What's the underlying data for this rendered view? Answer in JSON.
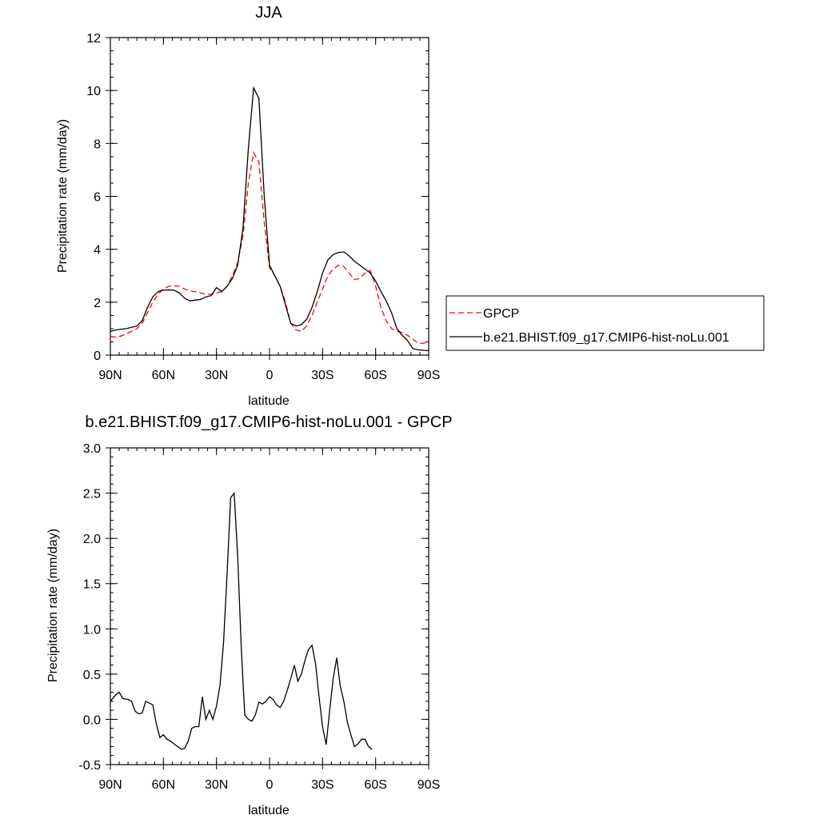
{
  "chart_data": [
    {
      "type": "line",
      "title": "JJA",
      "xlabel": "latitude",
      "ylabel": "Precipitation rate (mm/day)",
      "xlim": [
        90,
        -90
      ],
      "ylim": [
        0,
        12
      ],
      "x_ticks": [
        {
          "value": 90,
          "label": "90N"
        },
        {
          "value": 60,
          "label": "60N"
        },
        {
          "value": 30,
          "label": "30N"
        },
        {
          "value": 0,
          "label": "0"
        },
        {
          "value": -30,
          "label": "30S"
        },
        {
          "value": -60,
          "label": "60S"
        },
        {
          "value": -90,
          "label": "90S"
        }
      ],
      "y_ticks": [
        {
          "value": 0,
          "label": "0"
        },
        {
          "value": 2,
          "label": "2"
        },
        {
          "value": 4,
          "label": "4"
        },
        {
          "value": 6,
          "label": "6"
        },
        {
          "value": 8,
          "label": "8"
        },
        {
          "value": 10,
          "label": "10"
        },
        {
          "value": 12,
          "label": "12"
        }
      ],
      "legend_position": "right",
      "series": [
        {
          "name": "GPCP",
          "color": "#ff0000",
          "dash": true,
          "points": [
            [
              90,
              0.7
            ],
            [
              87,
              0.68
            ],
            [
              84,
              0.72
            ],
            [
              81,
              0.8
            ],
            [
              78,
              0.9
            ],
            [
              75,
              1.0
            ],
            [
              72,
              1.2
            ],
            [
              69,
              1.6
            ],
            [
              66,
              2.0
            ],
            [
              63,
              2.3
            ],
            [
              60,
              2.5
            ],
            [
              57,
              2.6
            ],
            [
              54,
              2.62
            ],
            [
              51,
              2.6
            ],
            [
              48,
              2.5
            ],
            [
              45,
              2.42
            ],
            [
              42,
              2.4
            ],
            [
              39,
              2.35
            ],
            [
              36,
              2.3
            ],
            [
              33,
              2.3
            ],
            [
              30,
              2.35
            ],
            [
              27,
              2.4
            ],
            [
              24,
              2.6
            ],
            [
              21,
              3.0
            ],
            [
              18,
              3.5
            ],
            [
              15,
              4.5
            ],
            [
              12,
              6.5
            ],
            [
              9,
              7.65
            ],
            [
              6,
              7.3
            ],
            [
              3,
              5.0
            ],
            [
              0,
              3.3
            ],
            [
              -3,
              3.0
            ],
            [
              -6,
              2.6
            ],
            [
              -9,
              2.0
            ],
            [
              -12,
              1.2
            ],
            [
              -15,
              0.95
            ],
            [
              -18,
              0.9
            ],
            [
              -21,
              1.1
            ],
            [
              -24,
              1.5
            ],
            [
              -27,
              2.0
            ],
            [
              -30,
              2.5
            ],
            [
              -33,
              3.0
            ],
            [
              -36,
              3.25
            ],
            [
              -39,
              3.4
            ],
            [
              -42,
              3.35
            ],
            [
              -45,
              3.1
            ],
            [
              -48,
              2.85
            ],
            [
              -51,
              2.9
            ],
            [
              -54,
              3.1
            ],
            [
              -57,
              3.2
            ],
            [
              -60,
              2.6
            ],
            [
              -63,
              1.8
            ],
            [
              -66,
              1.3
            ],
            [
              -69,
              1.0
            ],
            [
              -72,
              0.9
            ],
            [
              -75,
              0.85
            ],
            [
              -78,
              0.75
            ],
            [
              -81,
              0.6
            ],
            [
              -84,
              0.45
            ],
            [
              -87,
              0.45
            ],
            [
              -90,
              0.5
            ]
          ]
        },
        {
          "name": "b.e21.BHIST.f09_g17.CMIP6-hist-noLu.001",
          "color": "#000000",
          "dash": false,
          "points": [
            [
              90,
              0.9
            ],
            [
              87,
              0.95
            ],
            [
              84,
              0.98
            ],
            [
              81,
              1.0
            ],
            [
              78,
              1.05
            ],
            [
              75,
              1.1
            ],
            [
              72,
              1.3
            ],
            [
              69,
              1.8
            ],
            [
              66,
              2.2
            ],
            [
              63,
              2.4
            ],
            [
              60,
              2.45
            ],
            [
              57,
              2.47
            ],
            [
              54,
              2.45
            ],
            [
              51,
              2.35
            ],
            [
              48,
              2.15
            ],
            [
              45,
              2.05
            ],
            [
              42,
              2.08
            ],
            [
              39,
              2.1
            ],
            [
              36,
              2.2
            ],
            [
              33,
              2.25
            ],
            [
              30,
              2.55
            ],
            [
              27,
              2.4
            ],
            [
              24,
              2.6
            ],
            [
              21,
              2.9
            ],
            [
              18,
              3.4
            ],
            [
              15,
              4.8
            ],
            [
              12,
              7.8
            ],
            [
              9,
              10.1
            ],
            [
              6,
              9.7
            ],
            [
              3,
              6.0
            ],
            [
              0,
              3.4
            ],
            [
              -3,
              3.0
            ],
            [
              -6,
              2.6
            ],
            [
              -9,
              1.9
            ],
            [
              -12,
              1.2
            ],
            [
              -15,
              1.1
            ],
            [
              -18,
              1.15
            ],
            [
              -21,
              1.35
            ],
            [
              -24,
              1.8
            ],
            [
              -27,
              2.4
            ],
            [
              -30,
              3.1
            ],
            [
              -33,
              3.6
            ],
            [
              -36,
              3.8
            ],
            [
              -39,
              3.88
            ],
            [
              -42,
              3.9
            ],
            [
              -45,
              3.75
            ],
            [
              -48,
              3.55
            ],
            [
              -51,
              3.4
            ],
            [
              -54,
              3.25
            ],
            [
              -57,
              3.1
            ],
            [
              -60,
              2.8
            ],
            [
              -63,
              2.4
            ],
            [
              -66,
              2.05
            ],
            [
              -69,
              1.6
            ],
            [
              -72,
              1.0
            ],
            [
              -75,
              0.75
            ],
            [
              -78,
              0.55
            ],
            [
              -81,
              0.25
            ],
            [
              -84,
              0.2
            ],
            [
              -87,
              0.18
            ],
            [
              -90,
              0.17
            ]
          ]
        }
      ]
    },
    {
      "type": "line",
      "title": "b.e21.BHIST.f09_g17.CMIP6-hist-noLu.001 - GPCP",
      "xlabel": "latitude",
      "ylabel": "Precipitation rate (mm/day)",
      "xlim": [
        90,
        -90
      ],
      "ylim": [
        -0.5,
        3.0
      ],
      "x_ticks": [
        {
          "value": 90,
          "label": "90N"
        },
        {
          "value": 60,
          "label": "60N"
        },
        {
          "value": 30,
          "label": "30N"
        },
        {
          "value": 0,
          "label": "0"
        },
        {
          "value": -30,
          "label": "30S"
        },
        {
          "value": -60,
          "label": "60S"
        },
        {
          "value": -90,
          "label": "90S"
        }
      ],
      "y_ticks": [
        {
          "value": -0.5,
          "label": "-0.5"
        },
        {
          "value": 0.0,
          "label": "0.0"
        },
        {
          "value": 0.5,
          "label": "0.5"
        },
        {
          "value": 1.0,
          "label": "1.0"
        },
        {
          "value": 1.5,
          "label": "1.5"
        },
        {
          "value": 2.0,
          "label": "2.0"
        },
        {
          "value": 2.5,
          "label": "2.5"
        },
        {
          "value": 3.0,
          "label": "3.0"
        }
      ],
      "series": [
        {
          "color": "#000000",
          "dash": false,
          "points": [
            [
              90,
              0.2
            ],
            [
              87,
              0.27
            ],
            [
              85,
              0.3
            ],
            [
              83,
              0.23
            ],
            [
              80,
              0.22
            ],
            [
              78,
              0.2
            ],
            [
              76,
              0.09
            ],
            [
              74,
              0.06
            ],
            [
              72,
              0.07
            ],
            [
              70,
              0.2
            ],
            [
              68,
              0.18
            ],
            [
              66,
              0.16
            ],
            [
              64,
              -0.05
            ],
            [
              62,
              -0.2
            ],
            [
              60,
              -0.17
            ],
            [
              58,
              -0.22
            ],
            [
              56,
              -0.24
            ],
            [
              54,
              -0.27
            ],
            [
              52,
              -0.3
            ],
            [
              50,
              -0.33
            ],
            [
              48,
              -0.32
            ],
            [
              46,
              -0.24
            ],
            [
              44,
              -0.1
            ],
            [
              42,
              -0.08
            ],
            [
              40,
              -0.08
            ],
            [
              38,
              0.25
            ],
            [
              36,
              0.0
            ],
            [
              34,
              0.1
            ],
            [
              32,
              0.0
            ],
            [
              30,
              0.15
            ],
            [
              28,
              0.38
            ],
            [
              26,
              0.85
            ],
            [
              24,
              1.6
            ],
            [
              22,
              2.45
            ],
            [
              20,
              2.5
            ],
            [
              18,
              1.8
            ],
            [
              16,
              0.8
            ],
            [
              14,
              0.05
            ],
            [
              12,
              0.0
            ],
            [
              10,
              -0.02
            ],
            [
              8,
              0.05
            ],
            [
              6,
              0.19
            ],
            [
              4,
              0.17
            ],
            [
              2,
              0.2
            ],
            [
              0,
              0.25
            ],
            [
              -2,
              0.22
            ],
            [
              -4,
              0.16
            ],
            [
              -6,
              0.13
            ],
            [
              -8,
              0.2
            ],
            [
              -10,
              0.32
            ],
            [
              -12,
              0.45
            ],
            [
              -14,
              0.6
            ],
            [
              -16,
              0.42
            ],
            [
              -18,
              0.5
            ],
            [
              -20,
              0.65
            ],
            [
              -22,
              0.77
            ],
            [
              -24,
              0.82
            ],
            [
              -26,
              0.62
            ],
            [
              -28,
              0.25
            ],
            [
              -30,
              -0.08
            ],
            [
              -32,
              -0.28
            ],
            [
              -34,
              0.1
            ],
            [
              -36,
              0.45
            ],
            [
              -38,
              0.68
            ],
            [
              -40,
              0.37
            ],
            [
              -42,
              0.2
            ],
            [
              -44,
              -0.03
            ],
            [
              -46,
              -0.17
            ],
            [
              -48,
              -0.3
            ],
            [
              -50,
              -0.27
            ],
            [
              -52,
              -0.22
            ],
            [
              -54,
              -0.22
            ],
            [
              -56,
              -0.3
            ],
            [
              -58,
              -0.33
            ]
          ]
        }
      ]
    }
  ]
}
